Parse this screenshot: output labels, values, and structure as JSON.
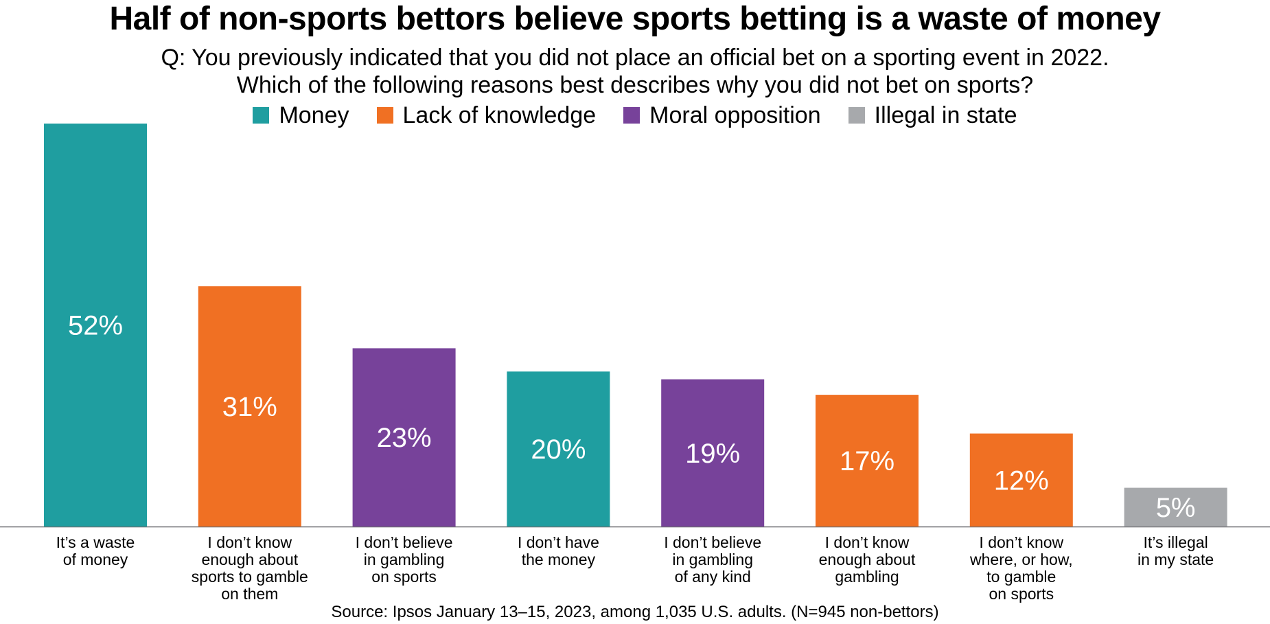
{
  "title": "Half of non-sports bettors believe sports betting is a waste of money",
  "subtitle_line1": "Q: You previously indicated that you did not place an official bet on a sporting event in 2022.",
  "subtitle_line2": "Which of the following reasons best describes why you did not bet on sports?",
  "legend": [
    {
      "label": "Money",
      "color": "#1f9ea0"
    },
    {
      "label": "Lack of knowledge",
      "color": "#f07023"
    },
    {
      "label": "Moral opposition",
      "color": "#77429a"
    },
    {
      "label": "Illegal in state",
      "color": "#a7a9ac"
    }
  ],
  "source": "Source: Ipsos January 13–15, 2023, among 1,035 U.S. adults. (N=945 non-bettors)",
  "chart_data": {
    "type": "bar",
    "categories": [
      "It’s a waste\nof money",
      "I don’t know\nenough about\nsports to gamble\non them",
      "I don’t believe\nin gambling\non sports",
      "I don’t have\nthe money",
      "I don’t believe\nin gambling\nof any kind",
      "I don’t know\nenough about\ngambling",
      "I don’t know\nwhere, or how,\nto gamble\non sports",
      "It’s illegal\nin my state"
    ],
    "values": [
      52,
      31,
      23,
      20,
      19,
      17,
      12,
      5
    ],
    "value_labels": [
      "52%",
      "31%",
      "23%",
      "20%",
      "19%",
      "17%",
      "12%",
      "5%"
    ],
    "groups": [
      "Money",
      "Lack of knowledge",
      "Moral opposition",
      "Money",
      "Moral opposition",
      "Lack of knowledge",
      "Lack of knowledge",
      "Illegal in state"
    ],
    "ylim": [
      0,
      52
    ],
    "grid": false,
    "legend_position": "top-center"
  }
}
